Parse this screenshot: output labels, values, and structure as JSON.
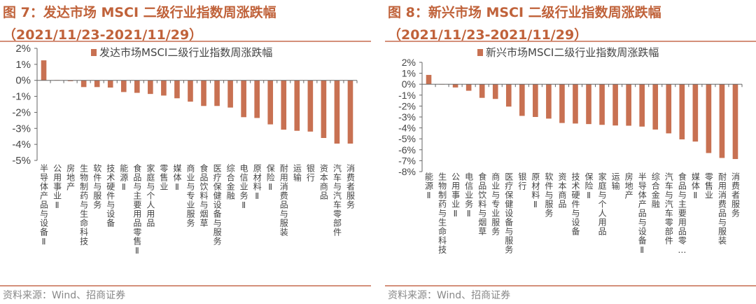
{
  "source": "资料来源：Wind、招商证券",
  "chart_data": [
    {
      "type": "bar",
      "title": "图 7：发达市场 MSCI 二级行业指数周涨跌幅",
      "subtitle": "（2021/11/23-2021/11/29）",
      "series_name": "发达市场MSCI二级行业指数周涨跌幅",
      "color": "#c87152",
      "ylim": [
        -5,
        2
      ],
      "yticks": [
        "2%",
        "1%",
        "0%",
        "-1%",
        "-2%",
        "-3%",
        "-4%",
        "-5%"
      ],
      "legend": "top",
      "grid": false,
      "categories": [
        "半导体产品与设备Ⅱ",
        "公用事业Ⅱ",
        "房地产",
        "生物制药与生命科技",
        "软件与服务",
        "技术硬件与设备",
        "能源Ⅱ",
        "食品与主要用品零售Ⅱ",
        "家庭与个人用品",
        "零售业",
        "媒体Ⅱ",
        "商业与专业服务",
        "食品饮料与烟草",
        "医疗保健设备与服务",
        "综合金融",
        "电信业务Ⅱ",
        "原材料Ⅱ",
        "保险Ⅱ",
        "耐用消费品与服装",
        "运输",
        "银行",
        "资本商品",
        "汽车与汽车零部件",
        "消费者服务"
      ],
      "values": [
        1.25,
        0.02,
        -0.05,
        -0.42,
        -0.42,
        -0.45,
        -0.73,
        -0.78,
        -0.85,
        -0.95,
        -1.12,
        -1.33,
        -1.6,
        -1.6,
        -1.7,
        -2.3,
        -2.35,
        -2.75,
        -3.08,
        -3.15,
        -3.2,
        -3.6,
        -3.95,
        -3.95
      ]
    },
    {
      "type": "bar",
      "title": "图 8：新兴市场 MSCI 二级行业指数周涨跌幅",
      "subtitle": "（2021/11/23-2021/11/29）",
      "series_name": "新兴市场MSCI二级行业指数周涨跌幅",
      "color": "#c87152",
      "ylim": [
        -8,
        2
      ],
      "yticks": [
        "2%",
        "1%",
        "0%",
        "-1%",
        "-2%",
        "-3%",
        "-4%",
        "-5%",
        "-6%",
        "-7%",
        "-8%"
      ],
      "legend": "top",
      "grid": false,
      "categories": [
        "能源Ⅱ",
        "生物制药与生命科技",
        "公用事业Ⅱ",
        "电信业务Ⅱ",
        "食品饮料与烟草",
        "商业与专业服务",
        "医疗保健设备与服务",
        "银行",
        "原材料Ⅱ",
        "软件与服务",
        "资本商品",
        "技术硬件与设备",
        "保险Ⅱ",
        "家庭与个人用品",
        "运输",
        "房地产",
        "半导体产品与设备Ⅱ",
        "综合金融",
        "汽车与汽车零部件",
        "食品与主要用品零…",
        "媒体Ⅱ",
        "零售业",
        "耐用消费品与服装",
        "消费者服务"
      ],
      "values": [
        0.85,
        -0.03,
        -0.3,
        -0.6,
        -1.25,
        -1.35,
        -2.05,
        -2.9,
        -3.0,
        -3.15,
        -3.55,
        -3.6,
        -3.65,
        -3.72,
        -3.78,
        -3.8,
        -3.88,
        -4.15,
        -4.5,
        -5.05,
        -5.25,
        -6.3,
        -6.75,
        -6.85
      ]
    }
  ]
}
